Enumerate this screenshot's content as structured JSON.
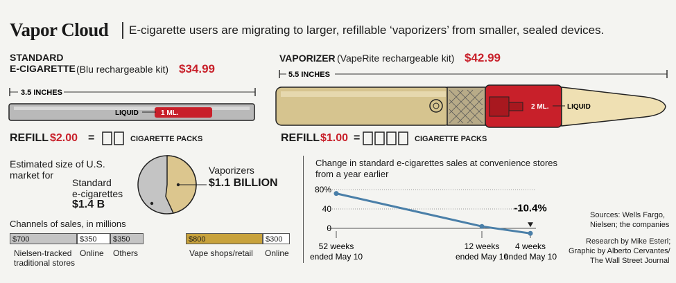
{
  "header": {
    "title": "Vapor Cloud",
    "subtitle": "E-cigarette users are migrating to larger, refillable ‘vaporizers’ from smaller, sealed devices."
  },
  "ecig": {
    "label_line1": "STANDARD",
    "label_line2": "E-CIGARETTE",
    "kit": "(Blu rechargeable kit)",
    "price": "$34.99",
    "length": "3.5 INCHES",
    "liquid_label": "LIQUID",
    "liquid_amount": "1 ML.",
    "refill_label": "REFILL",
    "refill_price": "$2.00",
    "equals": "=",
    "packs_label": "CIGARETTE PACKS",
    "packs": 2
  },
  "vaporizer": {
    "label": "VAPORIZER",
    "kit": "(VapeRite rechargeable kit)",
    "price": "$42.99",
    "length": "5.5 INCHES",
    "liquid_amount": "2 ML.",
    "liquid_label": "LIQUID",
    "refill_label": "REFILL",
    "refill_price": "$1.00",
    "equals": "=",
    "packs_label": "CIGARETTE PACKS",
    "packs": 4
  },
  "market": {
    "intro_line1": "Estimated size of U.S.",
    "intro_line2": "market for",
    "std_line1": "Standard",
    "std_line2": "e-cigarettes",
    "std_value": "$1.4 B",
    "vap_line1": "Vaporizers",
    "vap_value": "$1.1 BILLION",
    "colors": {
      "standard": "#c4c4c4",
      "vaporizers": "#dcc68e"
    }
  },
  "channels": {
    "title": "Channels of sales, in millions",
    "standard": [
      {
        "value": "$700",
        "label_line1": "Nielsen-tracked",
        "label_line2": "traditional stores",
        "color": "#c4c4c4"
      },
      {
        "value": "$350",
        "label_line1": "Online",
        "label_line2": "",
        "color": "#ffffff"
      },
      {
        "value": "$350",
        "label_line1": "Others",
        "label_line2": "",
        "color": "#c4c4c4"
      }
    ],
    "vaporizers": [
      {
        "value": "$800",
        "label_line1": "Vape shops/retail",
        "color": "#c8a23c"
      },
      {
        "value": "$300",
        "label_line1": "Online",
        "color": "#ffffff"
      }
    ]
  },
  "chart_data": {
    "type": "line",
    "title": "Change in standard e-cigarettes sales at convenience stores from a year earlier",
    "title_line1": "Change in standard e-cigarettes sales at convenience stores",
    "title_line2": "from a year earlier",
    "categories": [
      "52 weeks ended May 10",
      "12 weeks ended May 10",
      "4 weeks ended May 10"
    ],
    "category_lines": [
      [
        "52 weeks",
        "ended May 10"
      ],
      [
        "12 weeks",
        "ended May 10"
      ],
      [
        "4 weeks",
        "ended May 10"
      ]
    ],
    "values": [
      72,
      4,
      -10.4
    ],
    "ylim": [
      -15,
      80
    ],
    "yticks": [
      0,
      40,
      80
    ],
    "ytick_labels": [
      "0",
      "40",
      "80%"
    ],
    "annotation": "-10.4%",
    "line_color": "#4a7fa8",
    "grid": true
  },
  "credits": {
    "sources_line1": "Sources: Wells Fargo,",
    "sources_line2": "Nielsen; the companies",
    "research_line1": "Research by Mike Esterl;",
    "research_line2": "Graphic by Alberto Cervantes/",
    "research_line3": "The Wall Street Journal"
  }
}
